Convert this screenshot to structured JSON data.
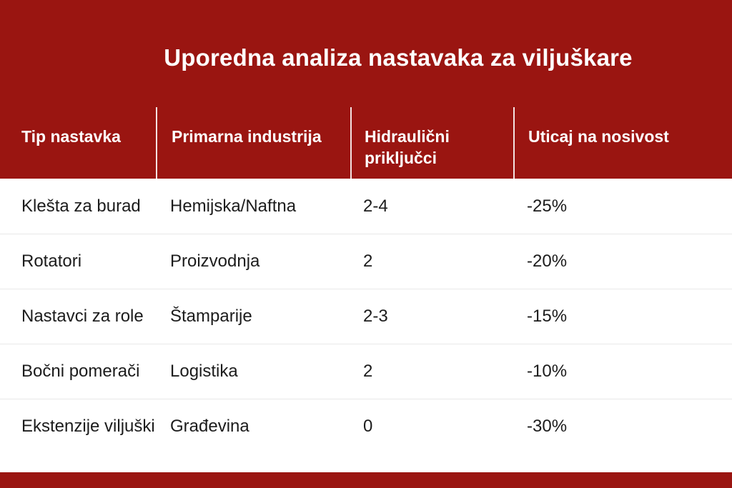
{
  "title": "Uporedna analiza nastavaka za viljuškare",
  "colors": {
    "accent_red": "#9a1511",
    "header_text": "#ffffff",
    "body_text": "#1c1c1c",
    "row_separator": "#e9e9e9",
    "column_divider": "#f2e9e9"
  },
  "chart_data": {
    "type": "table",
    "title": "Uporedna analiza nastavaka za viljuškare",
    "columns": [
      "Tip nastavka",
      "Primarna industrija",
      "Hidraulični priključci",
      "Uticaj na nosivost"
    ],
    "rows": [
      [
        "Klešta za burad",
        "Hemijska/Naftna",
        "2-4",
        "-25%"
      ],
      [
        "Rotatori",
        "Proizvodnja",
        "2",
        "-20%"
      ],
      [
        "Nastavci za role",
        "Štamparije",
        "2-3",
        "-15%"
      ],
      [
        "Bočni pomerači",
        "Logistika",
        "2",
        "-10%"
      ],
      [
        "Ekstenzije viljuški",
        "Građevina",
        "0",
        "-30%"
      ]
    ]
  }
}
